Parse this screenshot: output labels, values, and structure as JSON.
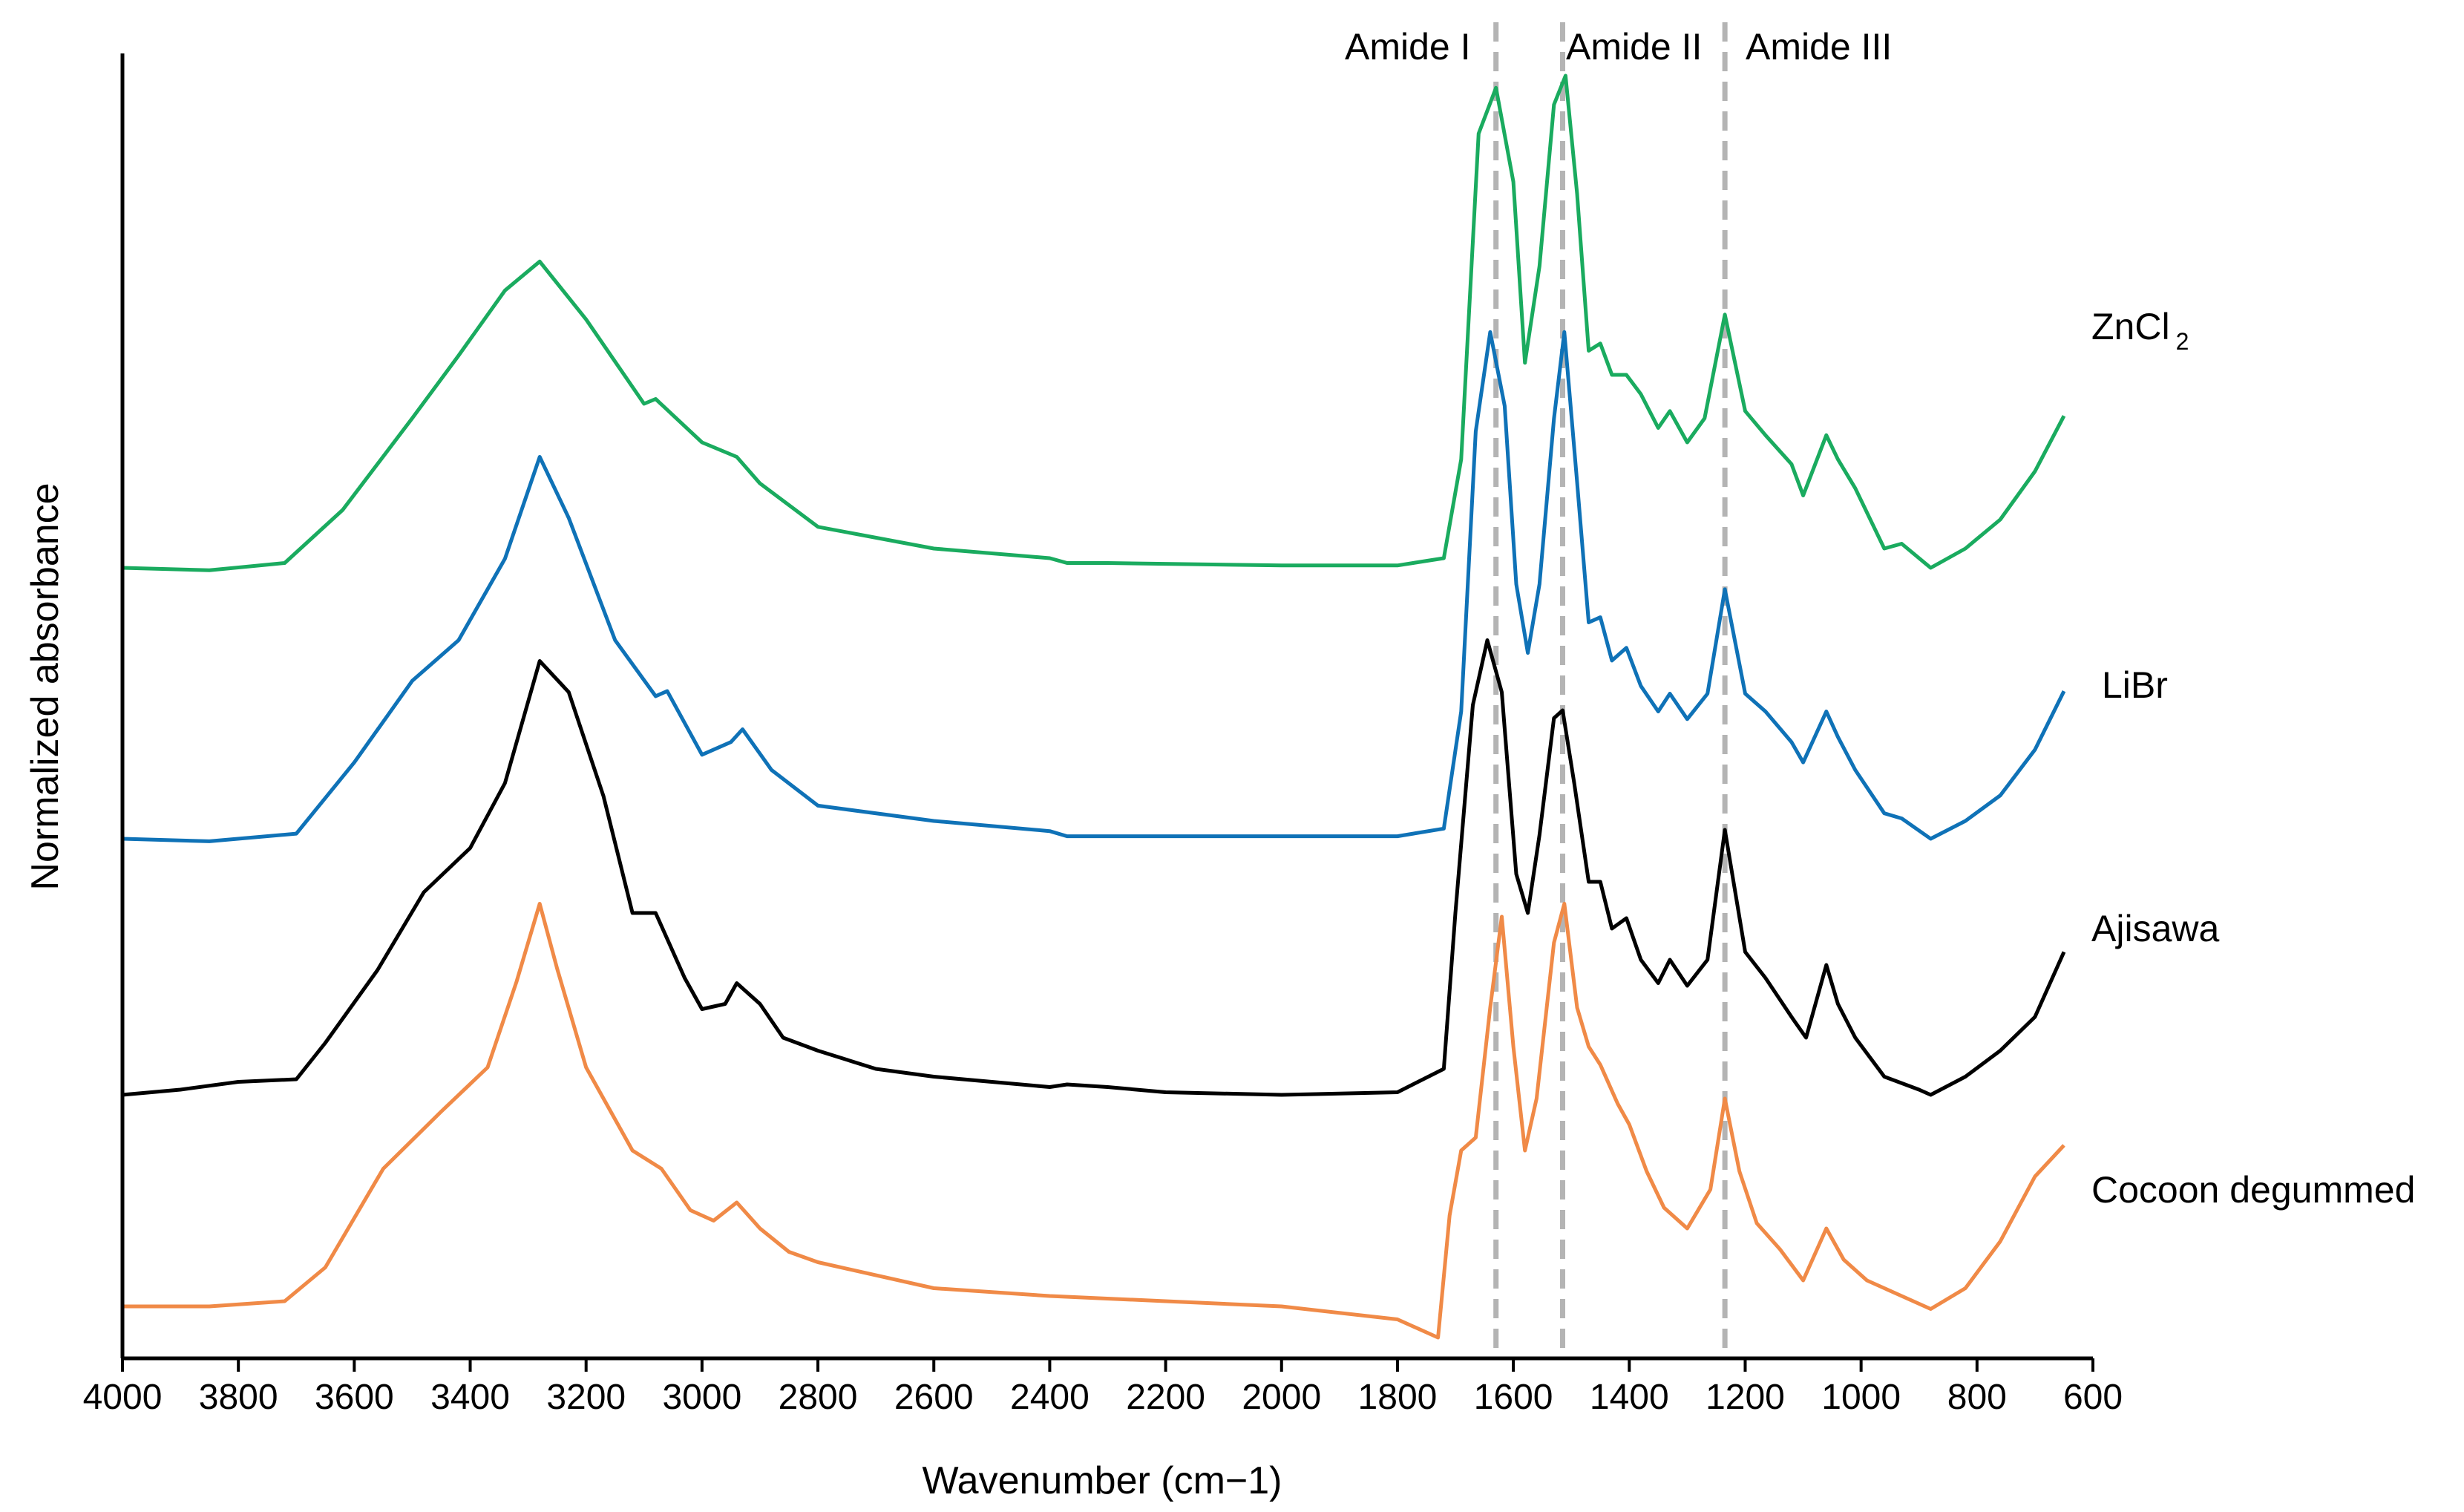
{
  "chart_data": {
    "type": "line",
    "xlabel": "Wavenumber (cm−1)",
    "ylabel": "Normalized absorbance",
    "xlim": [
      4000,
      600
    ],
    "x_reversed": true,
    "x_ticks": [
      "4000",
      "3800",
      "3600",
      "3400",
      "3200",
      "3000",
      "2800",
      "2600",
      "2400",
      "2200",
      "2000",
      "1800",
      "1600",
      "1400",
      "1200",
      "1000",
      "800",
      "600"
    ],
    "y_ticks_shown": false,
    "grid": false,
    "legend": "direct labels at right end of each curve",
    "annotations": [
      {
        "label": "Amide I",
        "x": 1630
      },
      {
        "label": "Amide II",
        "x": 1515
      },
      {
        "label": "Amide III",
        "x": 1235
      }
    ],
    "series": [
      {
        "name": "ZnCl2",
        "label_main": "ZnCl",
        "label_sub": "2",
        "color": "#1aab5f",
        "points": [
          [
            4000,
            0
          ],
          [
            3850,
            -0.01
          ],
          [
            3720,
            0.02
          ],
          [
            3620,
            0.24
          ],
          [
            3500,
            0.62
          ],
          [
            3420,
            0.88
          ],
          [
            3340,
            1.15
          ],
          [
            3280,
            1.27
          ],
          [
            3200,
            1.03
          ],
          [
            3100,
            0.68
          ],
          [
            3080,
            0.7
          ],
          [
            3000,
            0.52
          ],
          [
            2940,
            0.46
          ],
          [
            2900,
            0.35
          ],
          [
            2800,
            0.17
          ],
          [
            2600,
            0.08
          ],
          [
            2400,
            0.04
          ],
          [
            2370,
            0.02
          ],
          [
            2300,
            0.02
          ],
          [
            2000,
            0.01
          ],
          [
            1800,
            0.01
          ],
          [
            1720,
            0.04
          ],
          [
            1690,
            0.45
          ],
          [
            1660,
            1.8
          ],
          [
            1630,
            1.99
          ],
          [
            1600,
            1.6
          ],
          [
            1580,
            0.85
          ],
          [
            1555,
            1.25
          ],
          [
            1530,
            1.92
          ],
          [
            1510,
            2.04
          ],
          [
            1490,
            1.55
          ],
          [
            1470,
            0.9
          ],
          [
            1450,
            0.93
          ],
          [
            1430,
            0.8
          ],
          [
            1405,
            0.8
          ],
          [
            1380,
            0.72
          ],
          [
            1350,
            0.58
          ],
          [
            1330,
            0.65
          ],
          [
            1300,
            0.52
          ],
          [
            1270,
            0.62
          ],
          [
            1235,
            1.05
          ],
          [
            1200,
            0.65
          ],
          [
            1165,
            0.55
          ],
          [
            1120,
            0.43
          ],
          [
            1100,
            0.3
          ],
          [
            1060,
            0.55
          ],
          [
            1040,
            0.45
          ],
          [
            1010,
            0.33
          ],
          [
            960,
            0.08
          ],
          [
            930,
            0.1
          ],
          [
            880,
            0.0
          ],
          [
            820,
            0.08
          ],
          [
            760,
            0.2
          ],
          [
            700,
            0.4
          ],
          [
            650,
            0.63
          ]
        ]
      },
      {
        "name": "LiBr",
        "label_main": "LiBr",
        "label_sub": "",
        "color": "#0f72b7",
        "points": [
          [
            4000,
            0
          ],
          [
            3850,
            -0.01
          ],
          [
            3700,
            0.02
          ],
          [
            3600,
            0.3
          ],
          [
            3500,
            0.62
          ],
          [
            3420,
            0.78
          ],
          [
            3340,
            1.1
          ],
          [
            3280,
            1.5
          ],
          [
            3230,
            1.26
          ],
          [
            3150,
            0.78
          ],
          [
            3080,
            0.56
          ],
          [
            3060,
            0.58
          ],
          [
            3000,
            0.33
          ],
          [
            2950,
            0.38
          ],
          [
            2930,
            0.43
          ],
          [
            2880,
            0.27
          ],
          [
            2800,
            0.13
          ],
          [
            2600,
            0.07
          ],
          [
            2400,
            0.03
          ],
          [
            2370,
            0.01
          ],
          [
            2300,
            0.01
          ],
          [
            2000,
            0.01
          ],
          [
            1800,
            0.01
          ],
          [
            1720,
            0.04
          ],
          [
            1690,
            0.5
          ],
          [
            1665,
            1.6
          ],
          [
            1640,
            1.99
          ],
          [
            1615,
            1.7
          ],
          [
            1595,
            1.0
          ],
          [
            1575,
            0.73
          ],
          [
            1555,
            1.0
          ],
          [
            1530,
            1.65
          ],
          [
            1512,
            1.99
          ],
          [
            1490,
            1.4
          ],
          [
            1470,
            0.85
          ],
          [
            1450,
            0.87
          ],
          [
            1430,
            0.7
          ],
          [
            1405,
            0.75
          ],
          [
            1380,
            0.6
          ],
          [
            1350,
            0.5
          ],
          [
            1330,
            0.57
          ],
          [
            1300,
            0.47
          ],
          [
            1265,
            0.57
          ],
          [
            1235,
            0.98
          ],
          [
            1200,
            0.57
          ],
          [
            1165,
            0.5
          ],
          [
            1120,
            0.38
          ],
          [
            1100,
            0.3
          ],
          [
            1060,
            0.5
          ],
          [
            1040,
            0.4
          ],
          [
            1010,
            0.27
          ],
          [
            960,
            0.1
          ],
          [
            930,
            0.08
          ],
          [
            880,
            0.0
          ],
          [
            820,
            0.07
          ],
          [
            760,
            0.17
          ],
          [
            700,
            0.35
          ],
          [
            650,
            0.58
          ]
        ]
      },
      {
        "name": "Ajisawa",
        "label_main": "Ajisawa",
        "label_sub": "",
        "color": "#000000",
        "points": [
          [
            4000,
            0
          ],
          [
            3900,
            0.02
          ],
          [
            3800,
            0.05
          ],
          [
            3700,
            0.06
          ],
          [
            3650,
            0.2
          ],
          [
            3560,
            0.48
          ],
          [
            3480,
            0.78
          ],
          [
            3400,
            0.95
          ],
          [
            3340,
            1.2
          ],
          [
            3280,
            1.67
          ],
          [
            3230,
            1.55
          ],
          [
            3170,
            1.15
          ],
          [
            3120,
            0.7
          ],
          [
            3080,
            0.7
          ],
          [
            3030,
            0.45
          ],
          [
            3000,
            0.33
          ],
          [
            2960,
            0.35
          ],
          [
            2940,
            0.43
          ],
          [
            2900,
            0.35
          ],
          [
            2860,
            0.22
          ],
          [
            2800,
            0.17
          ],
          [
            2700,
            0.1
          ],
          [
            2600,
            0.07
          ],
          [
            2400,
            0.03
          ],
          [
            2370,
            0.04
          ],
          [
            2300,
            0.03
          ],
          [
            2200,
            0.01
          ],
          [
            2000,
            0.0
          ],
          [
            1800,
            0.01
          ],
          [
            1720,
            0.1
          ],
          [
            1700,
            0.7
          ],
          [
            1670,
            1.5
          ],
          [
            1645,
            1.75
          ],
          [
            1620,
            1.55
          ],
          [
            1595,
            0.85
          ],
          [
            1575,
            0.7
          ],
          [
            1555,
            1.0
          ],
          [
            1530,
            1.45
          ],
          [
            1515,
            1.48
          ],
          [
            1495,
            1.2
          ],
          [
            1470,
            0.82
          ],
          [
            1450,
            0.82
          ],
          [
            1430,
            0.64
          ],
          [
            1405,
            0.68
          ],
          [
            1380,
            0.52
          ],
          [
            1350,
            0.43
          ],
          [
            1330,
            0.52
          ],
          [
            1300,
            0.42
          ],
          [
            1265,
            0.52
          ],
          [
            1235,
            1.02
          ],
          [
            1200,
            0.55
          ],
          [
            1165,
            0.45
          ],
          [
            1120,
            0.3
          ],
          [
            1095,
            0.22
          ],
          [
            1060,
            0.5
          ],
          [
            1040,
            0.35
          ],
          [
            1010,
            0.22
          ],
          [
            960,
            0.07
          ],
          [
            900,
            0.02
          ],
          [
            880,
            0.0
          ],
          [
            820,
            0.07
          ],
          [
            760,
            0.17
          ],
          [
            700,
            0.3
          ],
          [
            650,
            0.55
          ]
        ]
      },
      {
        "name": "Cocoon degummed",
        "label_main": "Cocoon degummed",
        "label_sub": "",
        "color": "#f08a47",
        "points": [
          [
            4000,
            0
          ],
          [
            3850,
            0.0
          ],
          [
            3720,
            0.02
          ],
          [
            3650,
            0.15
          ],
          [
            3550,
            0.53
          ],
          [
            3450,
            0.75
          ],
          [
            3370,
            0.92
          ],
          [
            3320,
            1.25
          ],
          [
            3280,
            1.55
          ],
          [
            3250,
            1.3
          ],
          [
            3200,
            0.92
          ],
          [
            3120,
            0.6
          ],
          [
            3070,
            0.53
          ],
          [
            3020,
            0.37
          ],
          [
            2980,
            0.33
          ],
          [
            2940,
            0.4
          ],
          [
            2900,
            0.3
          ],
          [
            2850,
            0.21
          ],
          [
            2800,
            0.17
          ],
          [
            2600,
            0.07
          ],
          [
            2400,
            0.04
          ],
          [
            2200,
            0.02
          ],
          [
            2000,
            0.0
          ],
          [
            1800,
            -0.05
          ],
          [
            1730,
            -0.12
          ],
          [
            1710,
            0.35
          ],
          [
            1690,
            0.6
          ],
          [
            1665,
            0.65
          ],
          [
            1640,
            1.15
          ],
          [
            1620,
            1.5
          ],
          [
            1600,
            1.0
          ],
          [
            1580,
            0.6
          ],
          [
            1560,
            0.8
          ],
          [
            1530,
            1.4
          ],
          [
            1512,
            1.55
          ],
          [
            1490,
            1.15
          ],
          [
            1470,
            1.0
          ],
          [
            1450,
            0.93
          ],
          [
            1420,
            0.78
          ],
          [
            1400,
            0.7
          ],
          [
            1370,
            0.52
          ],
          [
            1340,
            0.38
          ],
          [
            1300,
            0.3
          ],
          [
            1260,
            0.45
          ],
          [
            1235,
            0.8
          ],
          [
            1210,
            0.52
          ],
          [
            1180,
            0.32
          ],
          [
            1140,
            0.22
          ],
          [
            1100,
            0.1
          ],
          [
            1060,
            0.3
          ],
          [
            1030,
            0.18
          ],
          [
            990,
            0.1
          ],
          [
            940,
            0.05
          ],
          [
            880,
            -0.01
          ],
          [
            820,
            0.07
          ],
          [
            760,
            0.25
          ],
          [
            700,
            0.5
          ],
          [
            650,
            0.62
          ]
        ]
      }
    ]
  }
}
